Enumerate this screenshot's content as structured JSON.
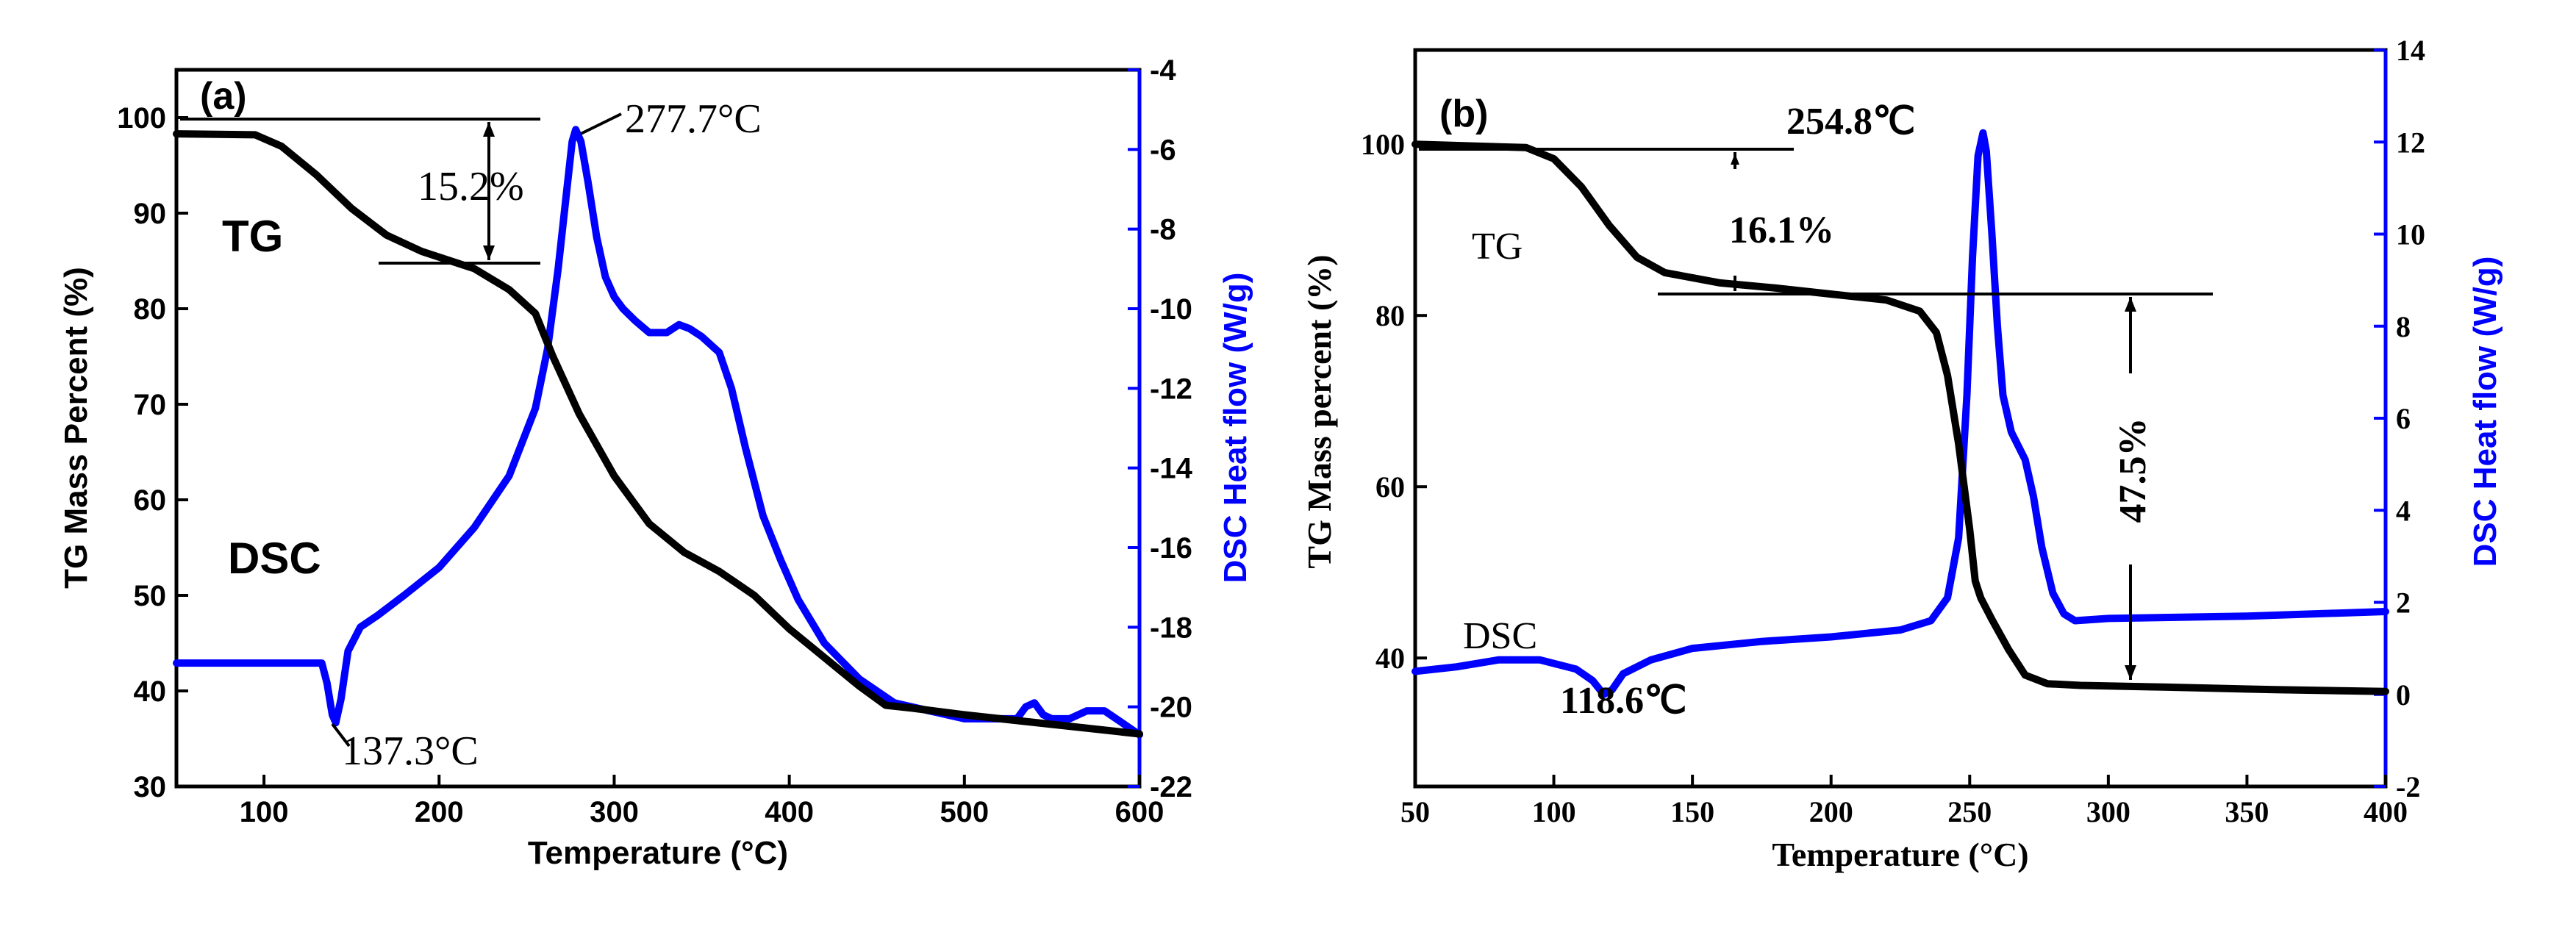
{
  "chart_data": [
    {
      "id": "a",
      "type": "line",
      "panel_label": "(a)",
      "xlabel": "Temperature  (°C)",
      "ylabel_left": "TG Mass Percent (%)",
      "ylabel_right": "DSC Heat flow (W/g)",
      "xlim": [
        50,
        600
      ],
      "ylim_left": [
        30,
        105
      ],
      "ylim_right": [
        -22,
        -4
      ],
      "xticks": [
        100,
        200,
        300,
        400,
        500,
        600
      ],
      "yticks_left": [
        30,
        40,
        50,
        60,
        70,
        80,
        90,
        100
      ],
      "yticks_right": [
        -22,
        -20,
        -18,
        -16,
        -14,
        -12,
        -10,
        -8,
        -6,
        -4
      ],
      "colors": {
        "tg": "#000000",
        "dsc": "#0000ff"
      },
      "series": [
        {
          "name": "TG",
          "axis": "left",
          "x": [
            50,
            95,
            110,
            130,
            150,
            170,
            190,
            210,
            220,
            240,
            255,
            265,
            280,
            300,
            320,
            340,
            360,
            380,
            400,
            420,
            440,
            455,
            470,
            500,
            550,
            600
          ],
          "y": [
            98.3,
            98.2,
            97,
            94,
            90.5,
            87.7,
            86,
            84.8,
            84.2,
            82,
            79.5,
            75,
            69,
            62.5,
            57.5,
            54.5,
            52.5,
            50,
            46.5,
            43.5,
            40.5,
            38.5,
            38.2,
            37.5,
            36.5,
            35.5
          ]
        },
        {
          "name": "DSC",
          "axis": "right",
          "x": [
            50,
            133,
            136,
            139,
            141,
            144,
            148,
            155,
            165,
            180,
            200,
            220,
            240,
            255,
            262,
            268,
            273,
            276,
            278,
            281,
            285,
            290,
            295,
            300,
            305,
            312,
            320,
            330,
            337,
            343,
            350,
            360,
            367,
            375,
            385,
            395,
            405,
            420,
            440,
            460,
            480,
            500,
            520,
            530,
            535,
            540,
            545,
            550,
            560,
            570,
            580,
            590,
            600
          ],
          "y": [
            -18.9,
            -18.9,
            -19.4,
            -20.2,
            -20.4,
            -19.8,
            -18.6,
            -18,
            -17.7,
            -17.2,
            -16.5,
            -15.5,
            -14.2,
            -12.5,
            -11,
            -9,
            -7,
            -5.8,
            -5.5,
            -5.8,
            -6.8,
            -8.2,
            -9.2,
            -9.7,
            -10,
            -10.3,
            -10.6,
            -10.6,
            -10.4,
            -10.5,
            -10.7,
            -11.1,
            -12,
            -13.5,
            -15.2,
            -16.3,
            -17.3,
            -18.4,
            -19.3,
            -19.9,
            -20.1,
            -20.3,
            -20.3,
            -20.3,
            -20,
            -19.9,
            -20.2,
            -20.3,
            -20.3,
            -20.1,
            -20.1,
            -20.4,
            -20.7
          ]
        }
      ],
      "annotations": {
        "tg_label": "TG",
        "dsc_label": "DSC",
        "mass_loss": "15.2%",
        "peak_exo": "277.7°C",
        "peak_endo": "137.3°C"
      }
    },
    {
      "id": "b",
      "type": "line",
      "panel_label": "(b)",
      "xlabel": "Temperature  (°C)",
      "ylabel_left": "TG Mass percent (%)",
      "ylabel_right": "DSC Heat flow (W/g)",
      "xlim": [
        50,
        400
      ],
      "ylim_left": [
        25,
        111
      ],
      "ylim_right": [
        -2,
        14
      ],
      "xticks": [
        50,
        100,
        150,
        200,
        250,
        300,
        350,
        400
      ],
      "yticks_left": [
        40,
        60,
        80,
        100
      ],
      "yticks_right": [
        -2,
        0,
        2,
        4,
        6,
        8,
        10,
        12,
        14
      ],
      "colors": {
        "tg": "#000000",
        "dsc": "#0000ff"
      },
      "series": [
        {
          "name": "TG",
          "axis": "left",
          "x": [
            50,
            90,
            100,
            110,
            120,
            130,
            140,
            160,
            180,
            200,
            220,
            232,
            238,
            242,
            246,
            250,
            252,
            254,
            258,
            264,
            270,
            278,
            290,
            320,
            360,
            400
          ],
          "y": [
            100,
            99.6,
            98.3,
            95,
            90.5,
            86.8,
            85,
            83.8,
            83.2,
            82.5,
            81.8,
            80.5,
            78,
            73,
            65,
            55,
            49,
            47,
            44.5,
            41,
            38,
            37,
            36.8,
            36.6,
            36.3,
            36.1
          ]
        },
        {
          "name": "DSC",
          "axis": "right",
          "x": [
            50,
            65,
            80,
            95,
            108,
            114,
            118,
            121,
            125,
            135,
            150,
            175,
            200,
            225,
            236,
            242,
            246,
            249,
            251,
            253,
            254.8,
            256,
            258,
            260,
            262,
            265,
            270,
            273,
            276,
            280,
            284,
            288,
            300,
            350,
            400
          ],
          "y": [
            0.5,
            0.6,
            0.75,
            0.75,
            0.55,
            0.3,
            0,
            0.1,
            0.45,
            0.75,
            1,
            1.15,
            1.25,
            1.4,
            1.6,
            2.1,
            3.4,
            6.5,
            9.5,
            11.7,
            12.2,
            11.8,
            10,
            8,
            6.5,
            5.7,
            5.1,
            4.3,
            3.2,
            2.2,
            1.75,
            1.6,
            1.65,
            1.7,
            1.8
          ]
        }
      ],
      "annotations": {
        "tg_label": "TG",
        "dsc_label": "DSC",
        "mass_loss_1": "16.1%",
        "mass_loss_2": "47.5%",
        "peak_exo": "254.8℃",
        "peak_endo": "118.6℃"
      }
    }
  ]
}
